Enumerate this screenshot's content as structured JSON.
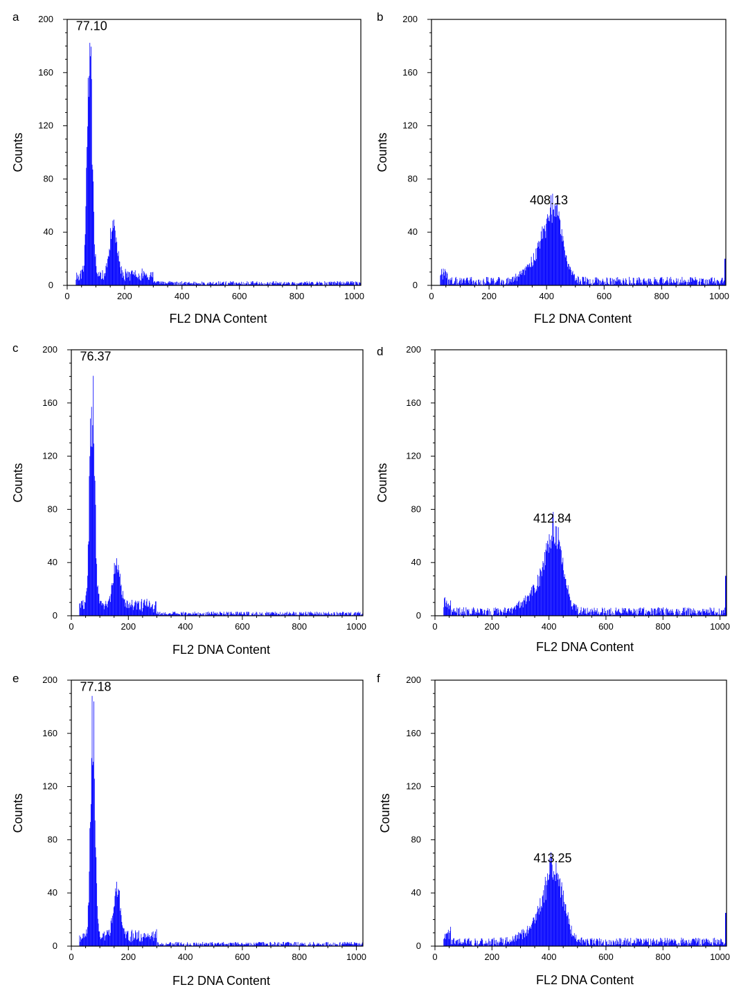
{
  "figure": {
    "bar_color": "#0000ff",
    "axis_color": "#000000"
  },
  "chart_data": [
    {
      "panel": "a",
      "type": "bar",
      "title": "",
      "xlabel": "FL2 DNA Content",
      "ylabel": "Counts",
      "xlim": [
        0,
        1023
      ],
      "ylim": [
        0,
        200
      ],
      "xticks": [
        0,
        200,
        400,
        600,
        800,
        1000
      ],
      "yticks": [
        0,
        40,
        80,
        120,
        160,
        200
      ],
      "peak_label": "77.10",
      "peak_label_at": [
        85,
        192
      ],
      "g1_peak": {
        "position": 77,
        "height": 182,
        "width": 9
      },
      "g2_peak": {
        "position": 160,
        "height": 40,
        "width": 12
      },
      "s_phase_level": 8,
      "background_level": 2,
      "start": 30,
      "edge_spike": 0,
      "seed": 11
    },
    {
      "panel": "b",
      "type": "bar",
      "title": "",
      "xlabel": "FL2 DNA Content",
      "ylabel": "Counts",
      "xlim": [
        0,
        1023
      ],
      "ylim": [
        0,
        200
      ],
      "xticks": [
        0,
        200,
        400,
        600,
        800,
        1000
      ],
      "yticks": [
        0,
        40,
        80,
        120,
        160,
        200
      ],
      "peak_label": "408.13",
      "peak_label_at": [
        408,
        61
      ],
      "g1_peak": {
        "position": 425,
        "height": 50,
        "width": 30
      },
      "g2_peak": null,
      "s_phase_level": 0,
      "background_level": 4,
      "start": 30,
      "edge_spike": 20,
      "seed": 22
    },
    {
      "panel": "c",
      "type": "bar",
      "title": "",
      "xlabel": "FL2 DNA Content",
      "ylabel": "Counts",
      "xlim": [
        0,
        1023
      ],
      "ylim": [
        0,
        200
      ],
      "xticks": [
        0,
        200,
        400,
        600,
        800,
        1000
      ],
      "yticks": [
        0,
        40,
        80,
        120,
        160,
        200
      ],
      "peak_label": "76.37",
      "peak_label_at": [
        85,
        192
      ],
      "g1_peak": {
        "position": 72,
        "height": 173,
        "width": 9
      },
      "g2_peak": {
        "position": 158,
        "height": 38,
        "width": 12
      },
      "s_phase_level": 8,
      "background_level": 2,
      "start": 28,
      "edge_spike": 0,
      "seed": 33
    },
    {
      "panel": "d",
      "type": "bar",
      "title": "",
      "xlabel": "FL2 DNA Content",
      "ylabel": "Counts",
      "xlim": [
        0,
        1023
      ],
      "ylim": [
        0,
        200
      ],
      "xticks": [
        0,
        200,
        400,
        600,
        800,
        1000
      ],
      "yticks": [
        0,
        40,
        80,
        120,
        160,
        200
      ],
      "peak_label": "412.84",
      "peak_label_at": [
        412,
        70
      ],
      "g1_peak": {
        "position": 420,
        "height": 55,
        "width": 28
      },
      "g2_peak": null,
      "s_phase_level": 0,
      "background_level": 4,
      "start": 30,
      "edge_spike": 30,
      "seed": 44
    },
    {
      "panel": "e",
      "type": "bar",
      "title": "",
      "xlabel": "FL2 DNA Content",
      "ylabel": "Counts",
      "xlim": [
        0,
        1023
      ],
      "ylim": [
        0,
        200
      ],
      "xticks": [
        0,
        200,
        400,
        600,
        800,
        1000
      ],
      "yticks": [
        0,
        40,
        80,
        120,
        160,
        200
      ],
      "peak_label": "77.18",
      "peak_label_at": [
        85,
        192
      ],
      "g1_peak": {
        "position": 74,
        "height": 186,
        "width": 8
      },
      "g2_peak": {
        "position": 160,
        "height": 36,
        "width": 12
      },
      "s_phase_level": 8,
      "background_level": 2,
      "start": 28,
      "edge_spike": 0,
      "seed": 55
    },
    {
      "panel": "f",
      "type": "bar",
      "title": "",
      "xlabel": "FL2 DNA Content",
      "ylabel": "Counts",
      "xlim": [
        0,
        1023
      ],
      "ylim": [
        0,
        200
      ],
      "xticks": [
        0,
        200,
        400,
        600,
        800,
        1000
      ],
      "yticks": [
        0,
        40,
        80,
        120,
        160,
        200
      ],
      "peak_label": "413.25",
      "peak_label_at": [
        413,
        63
      ],
      "g1_peak": {
        "position": 420,
        "height": 52,
        "width": 30
      },
      "g2_peak": null,
      "s_phase_level": 0,
      "background_level": 4,
      "start": 30,
      "edge_spike": 25,
      "seed": 66
    }
  ]
}
